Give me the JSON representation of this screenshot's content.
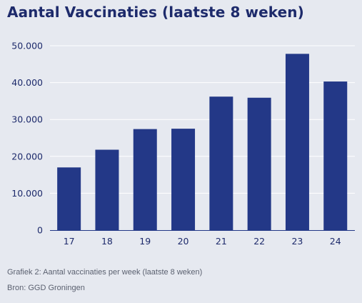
{
  "colors": {
    "bar": "#233887",
    "grid": "#ffffff",
    "axis": "#233887",
    "tick_text": "#1d2a6b",
    "background": "#e6e9f0"
  },
  "chart_data": {
    "type": "bar",
    "title": "Aantal Vaccinaties (laatste 8 weken)",
    "categories": [
      "17",
      "18",
      "19",
      "20",
      "21",
      "22",
      "23",
      "24"
    ],
    "values": [
      17000,
      21800,
      27400,
      27500,
      36200,
      35900,
      47800,
      40300
    ],
    "ylim": [
      0,
      50000
    ],
    "yticks": [
      {
        "value": 0,
        "label": "0"
      },
      {
        "value": 10000,
        "label": "10.000"
      },
      {
        "value": 20000,
        "label": "20.000"
      },
      {
        "value": 30000,
        "label": "30.000"
      },
      {
        "value": 40000,
        "label": "40.000"
      },
      {
        "value": 50000,
        "label": "50.000"
      }
    ],
    "grid": true,
    "xlabel": "",
    "ylabel": ""
  },
  "caption": {
    "line1": "Grafiek 2: Aantal vaccinaties per week (laatste 8 weken)",
    "line2": "Bron: GGD Groningen"
  }
}
